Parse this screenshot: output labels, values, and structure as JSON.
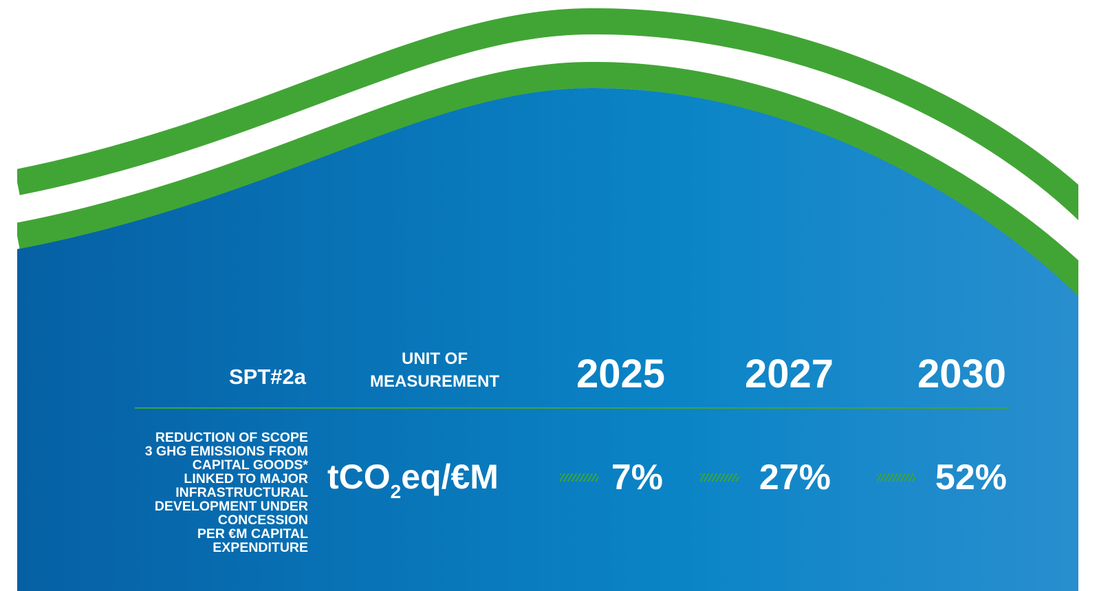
{
  "header": {
    "code": "SPT#2a",
    "unit_label": [
      "UNIT OF",
      "MEASUREMENT"
    ],
    "years": [
      "2025",
      "2027",
      "2030"
    ]
  },
  "row": {
    "label": [
      "REDUCTION OF SCOPE",
      "3 GHG EMISSIONS FROM",
      "CAPITAL GOODS*",
      "LINKED TO MAJOR",
      "INFRASTRUCTURAL",
      "DEVELOPMENT UNDER",
      "CONCESSION",
      "PER €M CAPITAL",
      "EXPENDITURE"
    ],
    "unit": [
      "tCO",
      "2",
      "eq/€M"
    ],
    "targets": [
      "7%",
      "27%",
      "52%"
    ]
  }
}
